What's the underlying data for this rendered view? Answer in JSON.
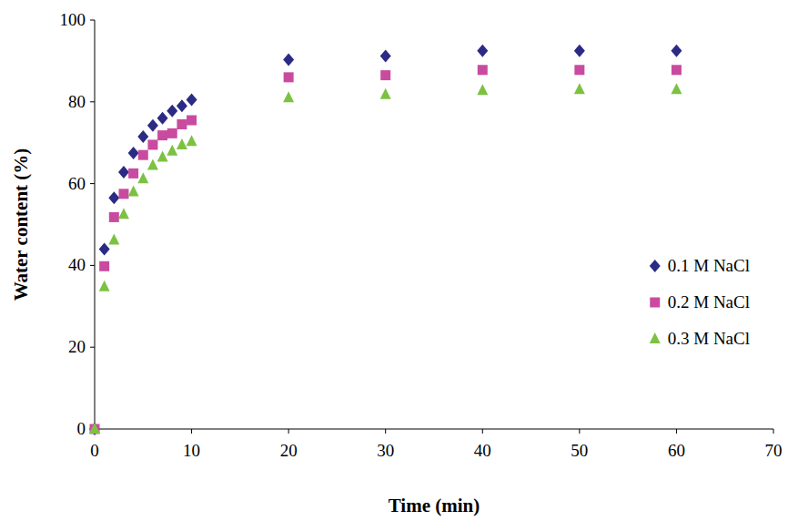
{
  "chart_data": {
    "type": "scatter",
    "x_label": "Time (min)",
    "y_label": "Water content (%)",
    "x": [
      0,
      1,
      2,
      3,
      4,
      5,
      6,
      7,
      8,
      9,
      10,
      20,
      30,
      40,
      50,
      60
    ],
    "series": [
      {
        "name": "0.1 M NaCl",
        "color": "#2b2b85",
        "marker": "diamond",
        "values": [
          0,
          44,
          56.5,
          62.8,
          67.5,
          71.5,
          74.2,
          76,
          77.8,
          79,
          80.5,
          90.3,
          91.2,
          92.5,
          92.5,
          92.5
        ]
      },
      {
        "name": "0.2 M NaCl",
        "color": "#c94ba0",
        "marker": "square",
        "values": [
          0,
          39.8,
          51.8,
          57.5,
          62.5,
          67,
          69.5,
          71.8,
          72.3,
          74.5,
          75.5,
          86,
          86.5,
          87.8,
          87.8,
          87.8
        ]
      },
      {
        "name": "0.3 M NaCl",
        "color": "#7cc242",
        "marker": "triangle",
        "values": [
          0,
          34.8,
          46.2,
          52.5,
          58,
          61.2,
          64.5,
          66.5,
          68,
          69.5,
          70.3,
          81,
          81.8,
          82.8,
          83,
          83
        ]
      }
    ],
    "xlim": [
      0,
      70
    ],
    "xticks": [
      0,
      10,
      20,
      30,
      40,
      50,
      60,
      70
    ],
    "ylim": [
      0,
      100
    ],
    "yticks": [
      0,
      20,
      40,
      60,
      80,
      100
    ],
    "grid": false,
    "legend": "lower right"
  }
}
